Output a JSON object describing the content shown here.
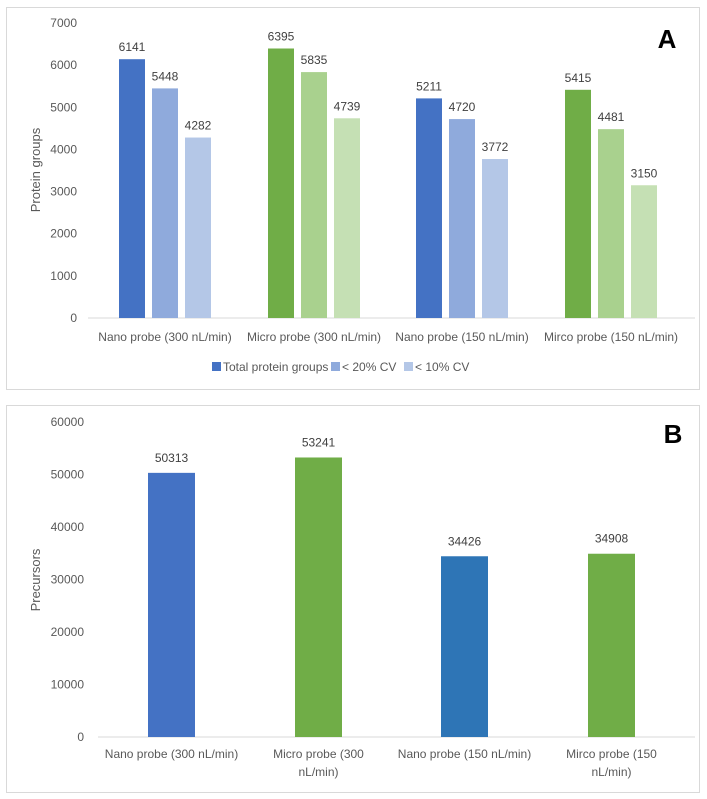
{
  "chart_data": [
    {
      "panel": "A",
      "type": "bar",
      "title": "",
      "xlabel": "",
      "ylabel": "Protein groups",
      "ylim": [
        0,
        7000
      ],
      "yticks": [
        0,
        1000,
        2000,
        3000,
        4000,
        5000,
        6000,
        7000
      ],
      "grid": false,
      "legend_position": "bottom",
      "categories": [
        "Nano probe (300 nL/min)",
        "Micro probe (300 nL/min)",
        "Nano probe (150 nL/min)",
        "Mirco probe (150 nL/min)"
      ],
      "series": [
        {
          "name": "Total protein groups",
          "values": [
            6141,
            6395,
            5211,
            5415
          ]
        },
        {
          "name": "< 20% CV",
          "values": [
            5448,
            5835,
            4720,
            4481
          ]
        },
        {
          "name": "< 10% CV",
          "values": [
            4282,
            4739,
            3772,
            3150
          ]
        }
      ],
      "bar_colors": [
        [
          "#4472c4",
          "#8faadc",
          "#b4c7e7"
        ],
        [
          "#70ad47",
          "#a9d18e",
          "#c5e0b4"
        ],
        [
          "#4472c4",
          "#8faadc",
          "#b4c7e7"
        ],
        [
          "#70ad47",
          "#a9d18e",
          "#c5e0b4"
        ]
      ],
      "legend_colors": [
        "#4472c4",
        "#8faadc",
        "#b4c7e7"
      ]
    },
    {
      "panel": "B",
      "type": "bar",
      "title": "",
      "xlabel": "",
      "ylabel": "Precursors",
      "ylim": [
        0,
        60000
      ],
      "yticks": [
        0,
        10000,
        20000,
        30000,
        40000,
        50000,
        60000
      ],
      "grid": false,
      "categories": [
        "Nano probe (300 nL/min)",
        "Micro probe (300 nL/min)",
        "Nano probe (150 nL/min)",
        "Mirco probe (150 nL/min)"
      ],
      "category_lines": [
        [
          "Nano probe (300 nL/min)"
        ],
        [
          "Micro probe (300",
          "nL/min)"
        ],
        [
          "Nano probe (150 nL/min)"
        ],
        [
          "Mirco probe (150",
          "nL/min)"
        ]
      ],
      "series": [
        {
          "name": "Precursors",
          "values": [
            50313,
            53241,
            34426,
            34908
          ]
        }
      ],
      "bar_colors": [
        "#4472c4",
        "#70ad47",
        "#2e75b6",
        "#70ad47"
      ]
    }
  ],
  "panel_letters": {
    "a": "A",
    "b": "B"
  }
}
